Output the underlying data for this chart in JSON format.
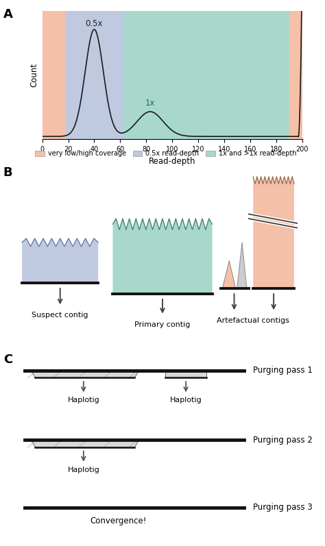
{
  "fig_width": 4.74,
  "fig_height": 7.97,
  "panel_A": {
    "peak1_label": "0.5x",
    "peak2_label": "1x",
    "xlabel": "Read-depth",
    "ylabel": "Count",
    "xlim": [
      0,
      200
    ],
    "color_salmon": "#F5C0A8",
    "color_blue": "#BFC9E0",
    "color_teal": "#A8D8CC",
    "curve_color": "#1a1a1a"
  },
  "legend": {
    "items": [
      "very low/high coverage",
      "0.5x read-depth",
      "1x and >1x read-depth"
    ],
    "colors": [
      "#F5C0A8",
      "#BFC9E0",
      "#A8D8CC"
    ]
  },
  "panel_B": {
    "suspect_color": "#BFC9E0",
    "primary_color": "#A8D8CC",
    "artefact_color": "#F5C0A8",
    "labels": [
      "Suspect contig",
      "Primary contig",
      "Artefactual contigs"
    ]
  },
  "panel_C": {
    "bar_color": "#D8D8D8",
    "bar_outline": "#666666",
    "main_line_color": "#111111",
    "labels": [
      "Purging pass 1",
      "Purging pass 2",
      "Purging pass 3"
    ],
    "convergence_label": "Convergence!"
  }
}
